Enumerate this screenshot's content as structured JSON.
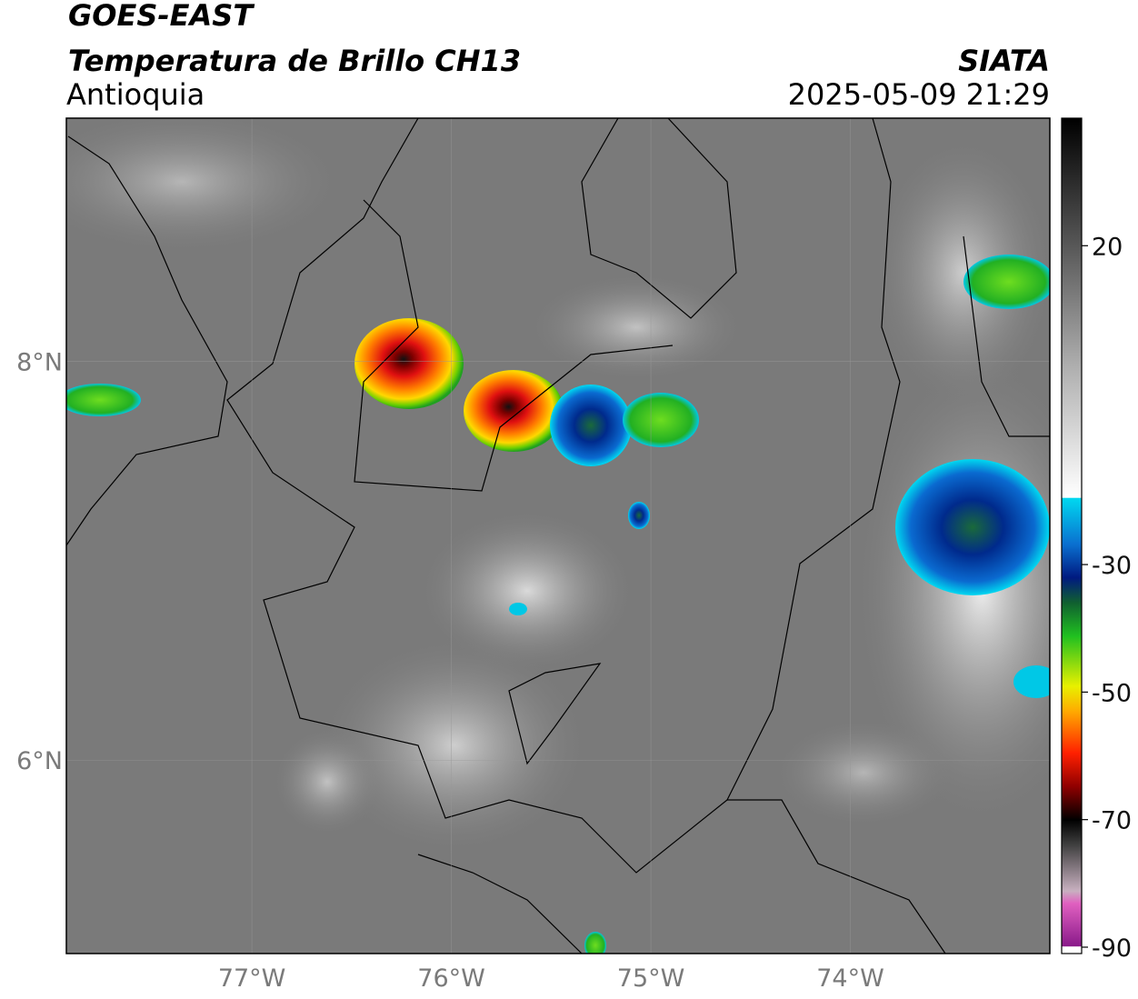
{
  "header": {
    "title": "GOES-EAST",
    "subtitle": "Temperatura de Brillo CH13",
    "region": "Antioquia",
    "source": "SIATA",
    "datetime": "2025-05-09 21:29"
  },
  "map": {
    "lonlim": [
      -77.93,
      -73.0
    ],
    "latlim": [
      5.03,
      9.22
    ],
    "lon_ticks": [
      {
        "value": -77,
        "label": "77°W"
      },
      {
        "value": -76,
        "label": "76°W"
      },
      {
        "value": -75,
        "label": "75°W"
      },
      {
        "value": -74,
        "label": "74°W"
      }
    ],
    "lat_ticks": [
      {
        "value": 8,
        "label": "8°N"
      },
      {
        "value": 6,
        "label": "6°N"
      }
    ]
  },
  "colorbar": {
    "lim": [
      -91,
      40
    ],
    "ticks": [
      20,
      -30,
      -50,
      -70,
      -90
    ]
  }
}
